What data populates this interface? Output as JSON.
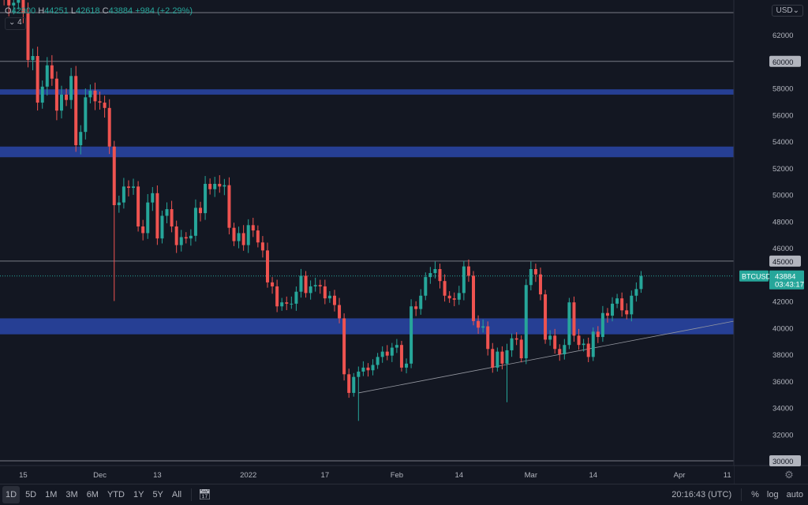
{
  "legend": {
    "o_label": "O",
    "o": "42900",
    "h_label": "H",
    "h": "44251",
    "l_label": "L",
    "l": "42618",
    "c_label": "C",
    "c": "43884",
    "change": "+984 (+2.29%)",
    "collapse": "4"
  },
  "currency": "USD",
  "symbol_tag": "BTCUSD",
  "price_tag": "43884",
  "countdown": "03:43:17",
  "bottom": {
    "timeframes": [
      "1D",
      "5D",
      "1M",
      "3M",
      "6M",
      "YTD",
      "1Y",
      "5Y",
      "All"
    ],
    "active": "1D",
    "time": "20:16:43 (UTC)",
    "percent": "%",
    "log": "log",
    "auto": "auto"
  },
  "colors": {
    "up": "#26a69a",
    "down": "#ef5350",
    "band": "#2a46a8",
    "bg": "#131722"
  },
  "chart_data": {
    "type": "candlestick",
    "symbol": "BTCUSD",
    "interval": "1D",
    "start_date": "2021-11-09",
    "closes": [
      67500,
      64900,
      64800,
      64200,
      64400,
      65500,
      63600,
      60100,
      60400,
      56900,
      58100,
      59700,
      58700,
      56300,
      57500,
      57100,
      58900,
      53700,
      54700,
      57300,
      57800,
      57000,
      56900,
      56500,
      53600,
      49200,
      49400,
      50600,
      50500,
      50600,
      47600,
      47100,
      49400,
      50100,
      46700,
      48400,
      48900,
      47600,
      46200,
      46800,
      46700,
      46900,
      49000,
      48600,
      50800,
      50400,
      50800,
      50600,
      50700,
      47500,
      46500,
      47100,
      46200,
      47700,
      47300,
      46400,
      45800,
      43400,
      43100,
      41600,
      41900,
      41800,
      41800,
      42700,
      43900,
      42600,
      43100,
      43200,
      43100,
      42200,
      42400,
      41700,
      40700,
      36500,
      35100,
      36300,
      36700,
      37000,
      36800,
      37200,
      37800,
      38200,
      37900,
      38500,
      38700,
      37000,
      37300,
      41600,
      41400,
      42400,
      43800,
      44100,
      44400,
      43500,
      42400,
      42200,
      42100,
      42600,
      44600,
      43900,
      40500,
      40000,
      40100,
      38400,
      37000,
      38200,
      37300,
      38300,
      39200,
      39100,
      37700,
      43200,
      44400,
      44000,
      42500,
      39100,
      39400,
      38400,
      38000,
      38700,
      41900,
      39400,
      38700,
      38800,
      37800,
      39700,
      39300,
      41100,
      40900,
      41800,
      42200,
      41300,
      41000,
      42400,
      42900,
      43884
    ],
    "notable_lows": {
      "2021-12-04": 42000,
      "2022-01-24": 33000,
      "2022-02-24": 34400
    },
    "y_ticks": [
      62000,
      58000,
      56000,
      54000,
      52000,
      50000,
      48000,
      46000,
      42000,
      40000,
      38000,
      36000,
      34000,
      32000
    ],
    "y_levels": [
      60000,
      45000,
      30000
    ],
    "ylim": [
      29000,
      64500
    ],
    "x_ticks": [
      {
        "label": "15",
        "date": "2021-11-15"
      },
      {
        "label": "Dec",
        "date": "2021-12-01"
      },
      {
        "label": "13",
        "date": "2021-12-13"
      },
      {
        "label": "2022",
        "date": "2022-01-01"
      },
      {
        "label": "17",
        "date": "2022-01-17"
      },
      {
        "label": "Feb",
        "date": "2022-02-01"
      },
      {
        "label": "14",
        "date": "2022-02-14"
      },
      {
        "label": "Mar",
        "date": "2022-03-01"
      },
      {
        "label": "14",
        "date": "2022-03-14"
      },
      {
        "label": "Apr",
        "date": "2022-04-01"
      },
      {
        "label": "11",
        "date": "2022-04-11"
      }
    ],
    "zones": [
      [
        57500,
        57900
      ],
      [
        52800,
        53600
      ],
      [
        39500,
        40700
      ]
    ],
    "trendline": [
      {
        "date": "2022-01-24",
        "price": 35100
      },
      {
        "date": "2022-04-14",
        "price": 40600
      }
    ],
    "last_price": 43884
  }
}
